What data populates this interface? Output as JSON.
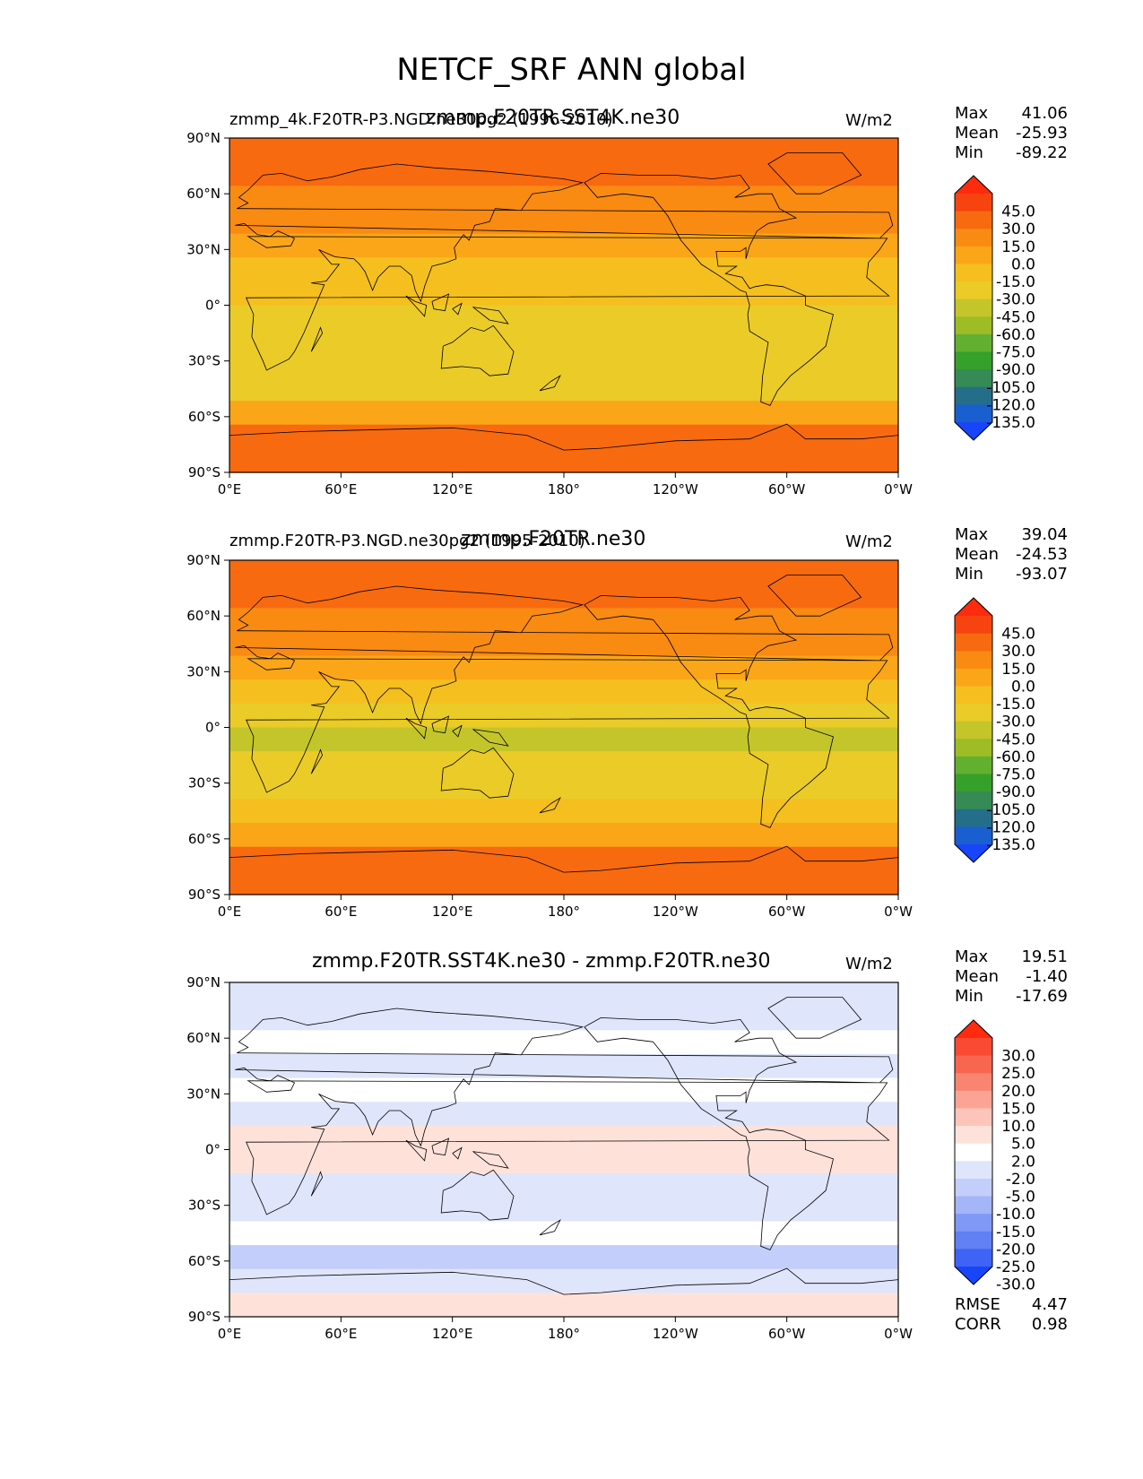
{
  "title": "NETCF_SRF ANN global",
  "panels": [
    {
      "left_label": "zmmp_4k.F20TR-P3.NGD.ne30pg2 (1996-2010)",
      "center_title": "zmmp.F20TR.SST4K.ne30",
      "units": "W/m2",
      "stats": [
        {
          "label": "Max",
          "value": "41.06"
        },
        {
          "label": "Mean",
          "value": "-25.93"
        },
        {
          "label": "Min",
          "value": "-89.22"
        }
      ],
      "colorbar_labels": [
        "45.0",
        "30.0",
        "15.0",
        "0.0",
        "-15.0",
        "-30.0",
        "-45.0",
        "-60.0",
        "-75.0",
        "-90.0",
        "-105.0",
        "-120.0",
        "-135.0"
      ],
      "colorbar_colors": [
        "#fe2b0e",
        "#f7430f",
        "#f76a10",
        "#f98a12",
        "#fba518",
        "#f4bf1f",
        "#eacb28",
        "#c4c52a",
        "#9dbc25",
        "#62b030",
        "#35a02a",
        "#358a55",
        "#246e8a",
        "#1a5fcf",
        "#1845fa"
      ]
    },
    {
      "left_label": "zmmp.F20TR-P3.NGD.ne30pg2 (1995-2010)",
      "center_title": "zmmp.F20TR.ne30",
      "units": "W/m2",
      "stats": [
        {
          "label": "Max",
          "value": "39.04"
        },
        {
          "label": "Mean",
          "value": "-24.53"
        },
        {
          "label": "Min",
          "value": "-93.07"
        }
      ],
      "colorbar_labels": [
        "45.0",
        "30.0",
        "15.0",
        "0.0",
        "-15.0",
        "-30.0",
        "-45.0",
        "-60.0",
        "-75.0",
        "-90.0",
        "-105.0",
        "-120.0",
        "-135.0"
      ],
      "colorbar_colors": [
        "#fe2b0e",
        "#f7430f",
        "#f76a10",
        "#f98a12",
        "#fba518",
        "#f4bf1f",
        "#eacb28",
        "#c4c52a",
        "#9dbc25",
        "#62b030",
        "#35a02a",
        "#358a55",
        "#246e8a",
        "#1a5fcf",
        "#1845fa"
      ]
    },
    {
      "left_label": "",
      "center_title": "zmmp.F20TR.SST4K.ne30 - zmmp.F20TR.ne30",
      "units": "W/m2",
      "stats": [
        {
          "label": "Max",
          "value": "19.51"
        },
        {
          "label": "Mean",
          "value": "-1.40"
        },
        {
          "label": "Min",
          "value": "-17.69"
        }
      ],
      "colorbar_labels": [
        "30.0",
        "25.0",
        "20.0",
        "15.0",
        "10.0",
        "5.0",
        "2.0",
        "-2.0",
        "-5.0",
        "-10.0",
        "-15.0",
        "-20.0",
        "-25.0",
        "-30.0"
      ],
      "colorbar_colors": [
        "#fe2b0e",
        "#fb4a33",
        "#f9664f",
        "#f98470",
        "#fba496",
        "#fdc4b9",
        "#fee2da",
        "#ffffff",
        "#dfe5fb",
        "#c3cefa",
        "#a4b5f8",
        "#8199f6",
        "#6080f4",
        "#3f63f4",
        "#1845fa"
      ],
      "extra_stats": [
        {
          "label": "RMSE",
          "value": "4.47"
        },
        {
          "label": "CORR",
          "value": "0.98"
        }
      ]
    }
  ],
  "chart_data": [
    {
      "type": "heatmap",
      "title": "zmmp.F20TR.SST4K.ne30",
      "subtitle": "zmmp_4k.F20TR-P3.NGD.ne30pg2 (1996-2010)",
      "units": "W/m2",
      "x_tick_labels": [
        "0°E",
        "60°E",
        "120°E",
        "180°",
        "120°W",
        "60°W",
        "0°W"
      ],
      "y_tick_labels": [
        "90°N",
        "60°N",
        "30°N",
        "0°",
        "30°S",
        "60°S",
        "90°S"
      ],
      "lat_band_values": [
        20,
        25,
        8,
        8,
        -12,
        -20,
        -28,
        -45,
        -42,
        -35,
        -33,
        -8,
        15,
        24
      ],
      "max": 41.06,
      "mean": -25.93,
      "min": -89.22
    },
    {
      "type": "heatmap",
      "title": "zmmp.F20TR.ne30",
      "subtitle": "zmmp.F20TR-P3.NGD.ne30pg2 (1995-2010)",
      "units": "W/m2",
      "x_tick_labels": [
        "0°E",
        "60°E",
        "120°E",
        "180°",
        "120°W",
        "60°W",
        "0°W"
      ],
      "y_tick_labels": [
        "90°N",
        "60°N",
        "30°N",
        "0°",
        "30°S",
        "60°S",
        "90°S"
      ],
      "lat_band_values": [
        22,
        24,
        8,
        4,
        -10,
        -22,
        -32,
        -50,
        -45,
        -35,
        -30,
        -5,
        18,
        24
      ],
      "max": 39.04,
      "mean": -24.53,
      "min": -93.07
    },
    {
      "type": "heatmap",
      "title": "zmmp.F20TR.SST4K.ne30 - zmmp.F20TR.ne30",
      "units": "W/m2",
      "x_tick_labels": [
        "0°E",
        "60°E",
        "120°E",
        "180°",
        "120°W",
        "60°W",
        "0°W"
      ],
      "y_tick_labels": [
        "90°N",
        "60°N",
        "30°N",
        "0°",
        "30°S",
        "60°S",
        "90°S"
      ],
      "lat_band_values": [
        -3,
        -4,
        1,
        -4,
        1,
        -3,
        4,
        3,
        -4,
        -4,
        0,
        -8,
        -3,
        2
      ],
      "max": 19.51,
      "mean": -1.4,
      "min": -17.69,
      "rmse": 4.47,
      "corr": 0.98
    }
  ]
}
